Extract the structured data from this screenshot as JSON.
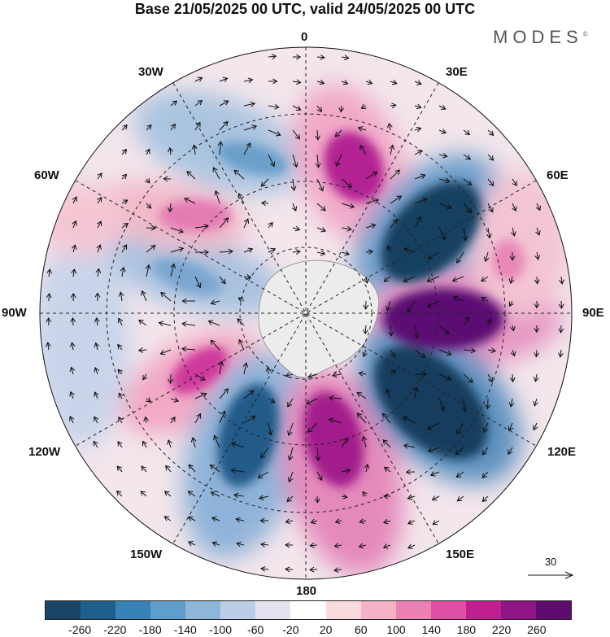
{
  "title": "Base 21/05/2025 00 UTC, valid 24/05/2025 00 UTC",
  "brand": "MODES",
  "brand_mark": "©",
  "longitude_labels": {
    "n0": "0",
    "n30e": "30E",
    "n60e": "60E",
    "n90e": "90E",
    "n120e": "120E",
    "n150e": "150E",
    "n180": "180",
    "n150w": "150W",
    "n120w": "120W",
    "n90w": "90W",
    "n60w": "60W",
    "n30w": "30W"
  },
  "reference_vector": "30",
  "colorbar": {
    "ticks": [
      "-260",
      "-220",
      "-180",
      "-140",
      "-100",
      "-60",
      "-20",
      "20",
      "60",
      "100",
      "140",
      "180",
      "220",
      "260"
    ],
    "colors": [
      "#1b4566",
      "#1f5f8b",
      "#3783b8",
      "#5f9ecb",
      "#8db6d9",
      "#bccde6",
      "#e2e3ef",
      "#ffffff",
      "#f9dadd",
      "#f5b2c7",
      "#ec82b3",
      "#e04ea6",
      "#c01f8f",
      "#8f1485",
      "#5e0d6e"
    ]
  }
}
